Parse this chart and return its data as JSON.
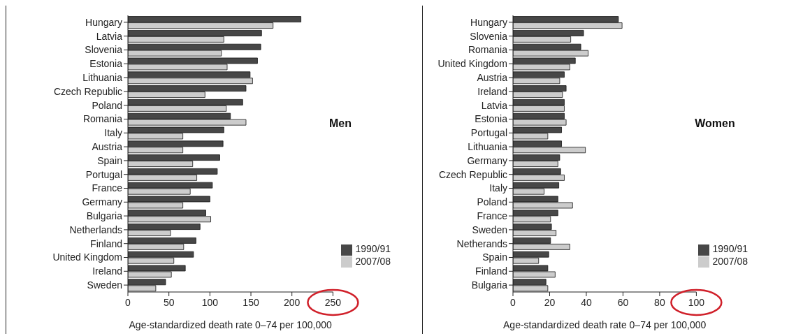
{
  "chart_data": [
    {
      "type": "bar",
      "orientation": "horizontal",
      "title": "Men",
      "xlabel": "Age-standardized death rate 0–74 per 100,000",
      "categories": [
        "Hungary",
        "Latvia",
        "Slovenia",
        "Estonia",
        "Lithuania",
        "Czech Republic",
        "Poland",
        "Romania",
        "Italy",
        "Austria",
        "Spain",
        "Portugal",
        "France",
        "Germany",
        "Bulgaria",
        "Netherlands",
        "Finland",
        "United Kingdom",
        "Ireland",
        "Sweden"
      ],
      "series": [
        {
          "name": "1990/91",
          "color": "#474747",
          "values": [
            211,
            163,
            162,
            158,
            149,
            144,
            140,
            125,
            117,
            116,
            112,
            109,
            103,
            100,
            95,
            88,
            83,
            80,
            70,
            46
          ]
        },
        {
          "name": "2007/08",
          "color": "#cccccc",
          "values": [
            177,
            117,
            114,
            121,
            152,
            94,
            120,
            144,
            67,
            67,
            79,
            84,
            76,
            67,
            101,
            52,
            68,
            56,
            53,
            34
          ]
        }
      ],
      "xlim": [
        0,
        250
      ],
      "xticks": [
        0,
        50,
        100,
        150,
        200,
        250
      ],
      "legend": "bottom right",
      "grid": false
    },
    {
      "type": "bar",
      "orientation": "horizontal",
      "title": "Women",
      "xlabel": "Age-standardized death rate 0–74 per 100,000",
      "categories": [
        "Hungary",
        "Slovenia",
        "Romania",
        "United Kingdom",
        "Austria",
        "Ireland",
        "Latvia",
        "Estonia",
        "Portugal",
        "Lithuania",
        "Germany",
        "Czech Republic",
        "Italy",
        "Poland",
        "France",
        "Sweden",
        "Netherands",
        "Spain",
        "Finland",
        "Bulgaria"
      ],
      "series": [
        {
          "name": "1990/91",
          "color": "#474747",
          "values": [
            57.5,
            38.5,
            37,
            34,
            28,
            29,
            28,
            28,
            26.5,
            26.5,
            25.5,
            26,
            25,
            24.5,
            24.5,
            21,
            20.5,
            19.5,
            19,
            18
          ]
        },
        {
          "name": "2007/08",
          "color": "#cccccc",
          "values": [
            59.5,
            31.5,
            41,
            31,
            25.5,
            27,
            28,
            29,
            19,
            39.5,
            24.5,
            28,
            17,
            32.5,
            20.5,
            23.5,
            31,
            14,
            23,
            19
          ]
        }
      ],
      "xlim": [
        0,
        100
      ],
      "xticks": [
        0,
        20,
        40,
        60,
        80,
        100
      ],
      "legend": "bottom right",
      "grid": false
    }
  ]
}
